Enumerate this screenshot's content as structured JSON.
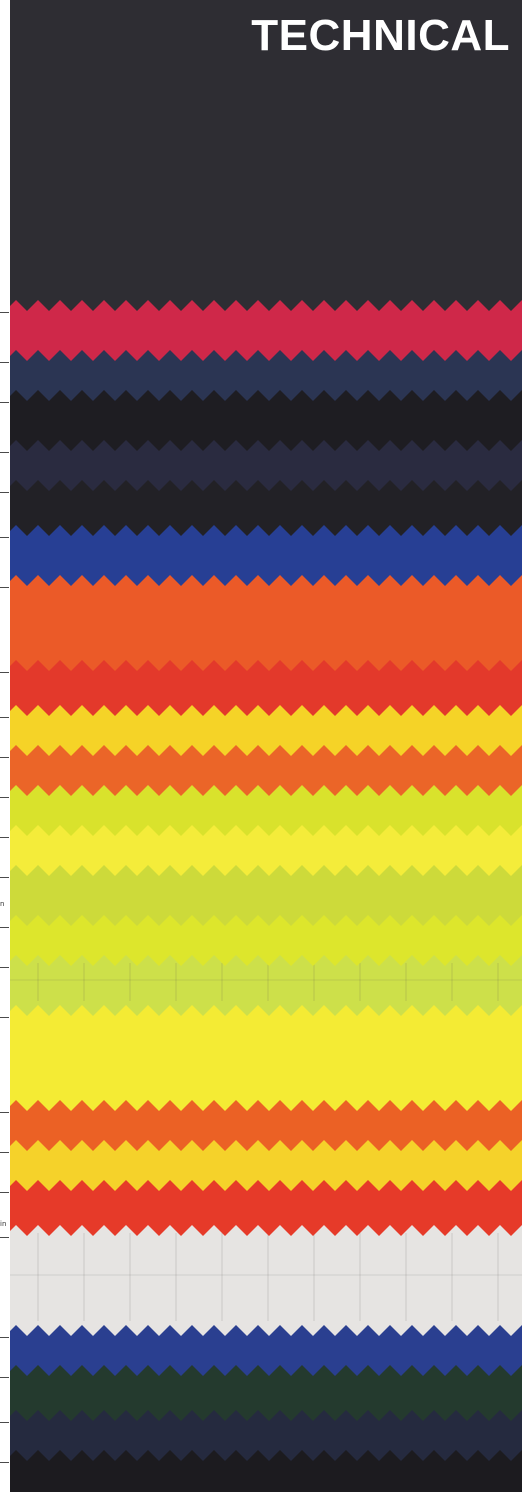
{
  "title": "TECHNICAL",
  "edge_notes": [
    "n",
    "in"
  ],
  "swatches": [
    {
      "name": "charcoal",
      "color": "#2e2d33"
    },
    {
      "name": "crimson-red",
      "color": "#cf2849"
    },
    {
      "name": "dark-navy-blue",
      "color": "#2b3553"
    },
    {
      "name": "black",
      "color": "#1e1d22"
    },
    {
      "name": "dark-navy",
      "color": "#2a2b40"
    },
    {
      "name": "black",
      "color": "#222126"
    },
    {
      "name": "royal-blue",
      "color": "#273f94"
    },
    {
      "name": "orange",
      "color": "#eb5a28"
    },
    {
      "name": "red",
      "color": "#e3392b"
    },
    {
      "name": "yellow",
      "color": "#f5d327"
    },
    {
      "name": "orange",
      "color": "#eb6528"
    },
    {
      "name": "lime-yellow",
      "color": "#d9e22c"
    },
    {
      "name": "bright-yellow",
      "color": "#f4ec3a"
    },
    {
      "name": "lime-green",
      "color": "#cdda3a"
    },
    {
      "name": "fluorescent-yellow",
      "color": "#dde62c"
    },
    {
      "name": "pale-lime-ripstop",
      "color": "#cde04a"
    },
    {
      "name": "bright-yellow",
      "color": "#f4eb34"
    },
    {
      "name": "orange",
      "color": "#eb6125"
    },
    {
      "name": "yellow",
      "color": "#f5d22a"
    },
    {
      "name": "red",
      "color": "#e63a29"
    },
    {
      "name": "white-ripstop",
      "color": "#e6e4e2"
    },
    {
      "name": "royal-blue",
      "color": "#2a3f90"
    },
    {
      "name": "dark-green",
      "color": "#243a2e"
    },
    {
      "name": "navy",
      "color": "#252a3f"
    },
    {
      "name": "black",
      "color": "#1c1b1f"
    }
  ]
}
